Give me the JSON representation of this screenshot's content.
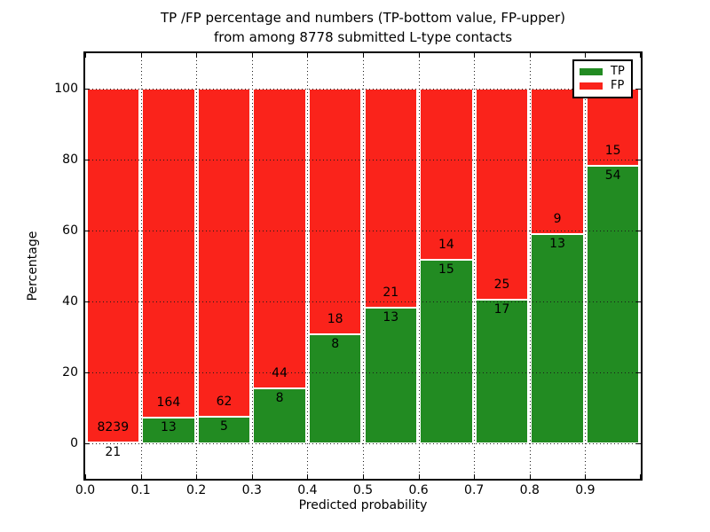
{
  "figure": {
    "title_line1": "TP /FP percentage and numbers (TP-bottom value, FP-upper)",
    "title_line2": "from among 8778 submitted L-type contacts",
    "xlabel": "Predicted probability",
    "ylabel": "Percentage"
  },
  "colors": {
    "tp_green": "#228b22",
    "fp_red": "#fa231b",
    "grid": "#1a1a1a",
    "frame": "#000000",
    "background": "#ffffff"
  },
  "legend": {
    "position": "upper right",
    "items": [
      {
        "label": "TP",
        "color": "#228b22"
      },
      {
        "label": "FP",
        "color": "#fa231b"
      }
    ]
  },
  "chart_data": {
    "type": "bar",
    "stacked": true,
    "normalized": "percent of bin total",
    "title": "TP /FP percentage and numbers (TP-bottom value, FP-upper) from among 8778 submitted L-type contacts",
    "xlabel": "Predicted probability",
    "ylabel": "Percentage",
    "total_submitted_contacts": 8778,
    "bin_edges": [
      0.0,
      0.1,
      0.2,
      0.3,
      0.4,
      0.5,
      0.6,
      0.7,
      0.8,
      0.9,
      1.0
    ],
    "categories": [
      "0.0-0.1",
      "0.1-0.2",
      "0.2-0.3",
      "0.3-0.4",
      "0.4-0.5",
      "0.5-0.6",
      "0.6-0.7",
      "0.7-0.8",
      "0.8-0.9",
      "0.9-1.0"
    ],
    "series": [
      {
        "name": "TP",
        "color": "#228b22",
        "counts": [
          21,
          13,
          5,
          8,
          8,
          13,
          15,
          17,
          13,
          54
        ],
        "percents": [
          0.25,
          7.34,
          7.46,
          15.38,
          30.77,
          38.24,
          51.72,
          40.48,
          59.09,
          78.26
        ]
      },
      {
        "name": "FP",
        "color": "#fa231b",
        "counts": [
          8239,
          164,
          62,
          44,
          18,
          21,
          14,
          25,
          9,
          15
        ],
        "percents": [
          99.75,
          92.66,
          92.54,
          84.62,
          69.23,
          61.76,
          48.28,
          59.52,
          40.91,
          21.74
        ]
      }
    ],
    "xticks": [
      0.0,
      0.1,
      0.2,
      0.3,
      0.4,
      0.5,
      0.6,
      0.7,
      0.8,
      0.9
    ],
    "xtick_labels": [
      "0.0",
      "0.1",
      "0.2",
      "0.3",
      "0.4",
      "0.5",
      "0.6",
      "0.7",
      "0.8",
      "0.9"
    ],
    "yticks": [
      0,
      20,
      40,
      60,
      80,
      100
    ],
    "ylim": [
      -10,
      110
    ],
    "xlim": [
      0.0,
      1.0
    ],
    "grid": true,
    "grid_style": "dotted",
    "legend_position": "upper right"
  }
}
